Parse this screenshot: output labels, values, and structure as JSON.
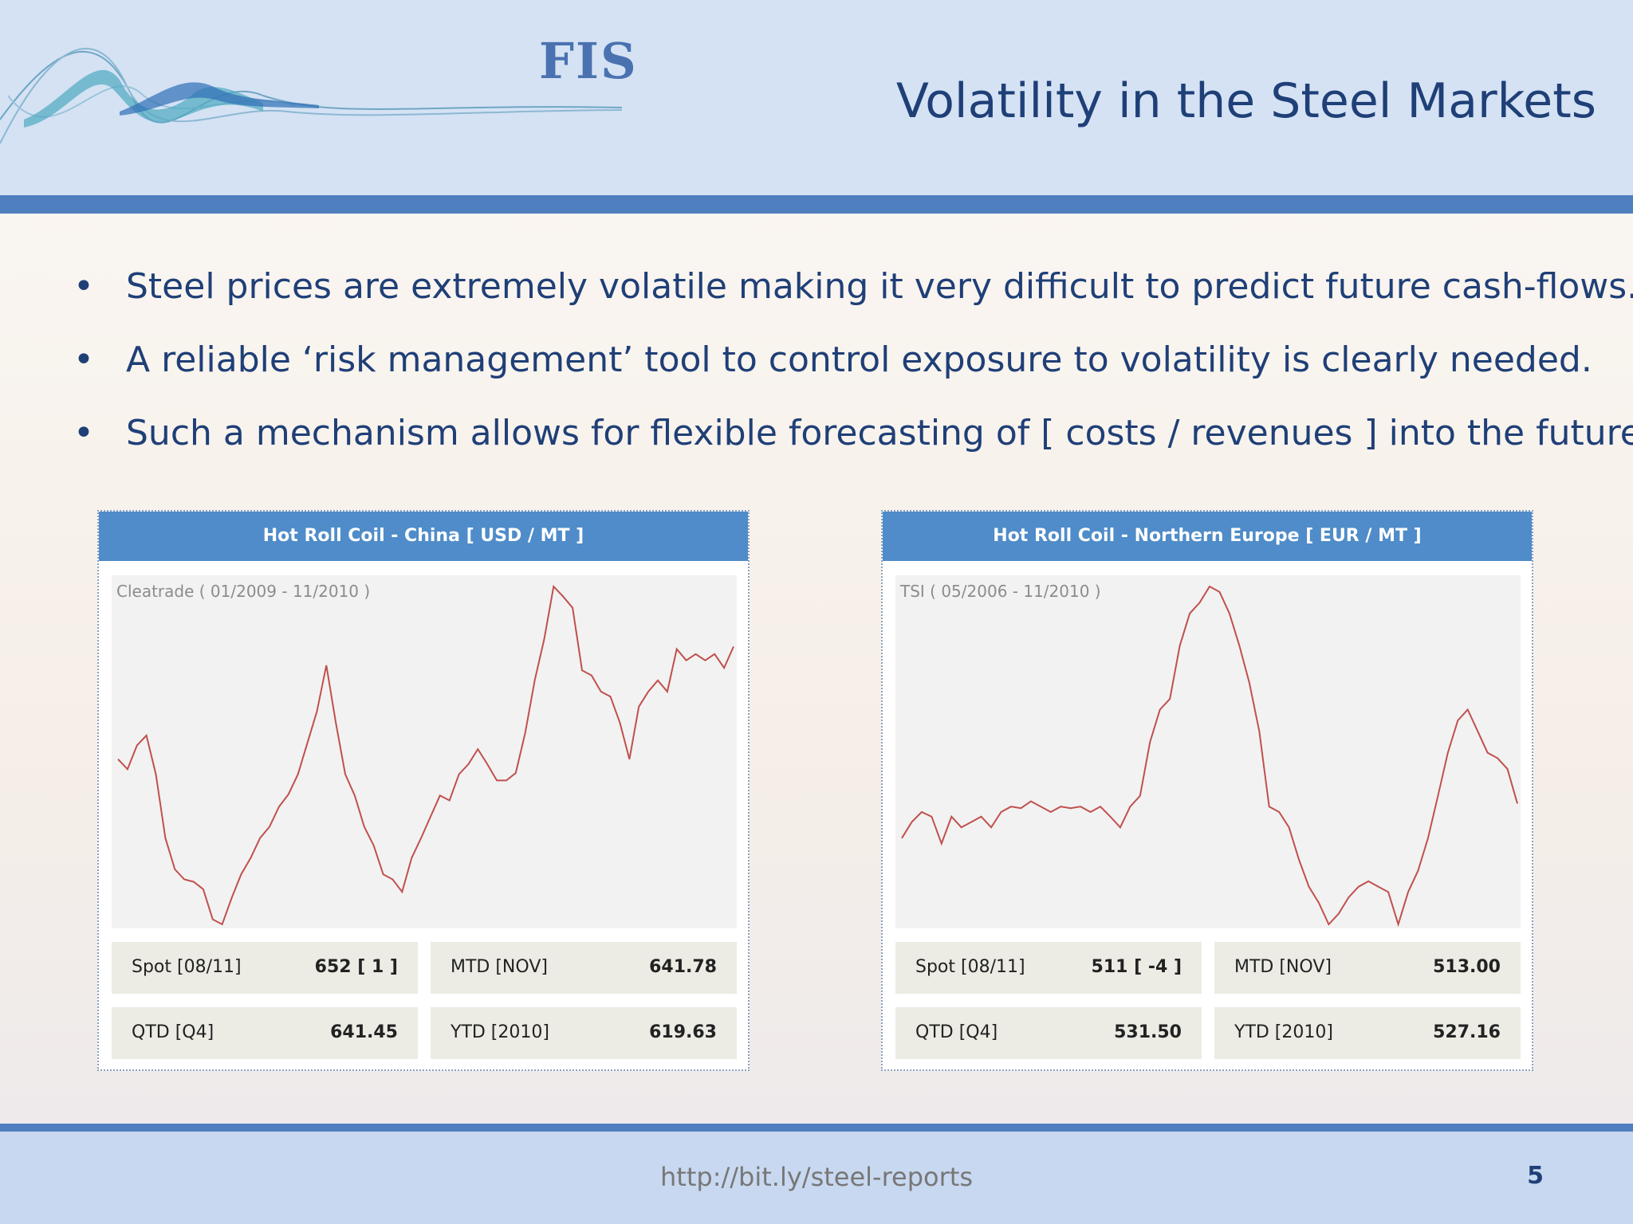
{
  "header": {
    "logo": "FIS",
    "title": "Volatility in the Steel Markets"
  },
  "bullets": [
    "Steel prices are extremely volatile making it very difficult to predict future cash-flows.",
    "A reliable ‘risk management’ tool to control exposure to volatility is clearly needed.",
    "Such a mechanism allows for flexible forecasting of [ costs / revenues ] into the future."
  ],
  "panels": [
    {
      "title": "Hot Roll Coil - China [ USD / MT ]",
      "chart_data": {
        "type": "line",
        "note": "Cleatrade ( 01/2009 - 11/2010 )",
        "color": "#c0504d",
        "values": [
          562,
          554,
          573,
          581,
          550,
          499,
          474,
          466,
          464,
          458,
          434,
          430,
          451,
          470,
          483,
          499,
          508,
          524,
          534,
          550,
          575,
          600,
          637,
          591,
          550,
          533,
          508,
          493,
          470,
          466,
          456,
          483,
          499,
          516,
          533,
          529,
          550,
          558,
          570,
          558,
          545,
          545,
          551,
          583,
          625,
          658,
          700,
          692,
          683,
          633,
          629,
          616,
          612,
          591,
          562,
          604,
          616,
          625,
          616,
          650,
          641,
          646,
          641,
          646,
          635,
          652
        ]
      },
      "stats": [
        {
          "label": "Spot [08/11]",
          "value": "652 [ 1 ]"
        },
        {
          "label": "MTD [NOV]",
          "value": "641.78"
        },
        {
          "label": "QTD [Q4]",
          "value": "641.45"
        },
        {
          "label": "YTD [2010]",
          "value": "619.63"
        }
      ]
    },
    {
      "title": "Hot Roll Coil - Northern Europe [ EUR / MT ]",
      "chart_data": {
        "type": "line",
        "note": "TSI ( 05/2006 - 11/2010 )",
        "color": "#c0504d",
        "values": [
          466,
          487,
          500,
          494,
          459,
          494,
          480,
          487,
          494,
          480,
          500,
          507,
          505,
          514,
          507,
          500,
          507,
          505,
          507,
          500,
          507,
          494,
          480,
          507,
          521,
          591,
          633,
          647,
          716,
          758,
          772,
          793,
          786,
          758,
          716,
          668,
          605,
          507,
          500,
          480,
          438,
          403,
          382,
          354,
          368,
          389,
          403,
          410,
          403,
          396,
          354,
          396,
          424,
          466,
          521,
          577,
          619,
          633,
          605,
          577,
          570,
          556,
          511
        ]
      },
      "stats": [
        {
          "label": "Spot [08/11]",
          "value": "511 [ -4 ]"
        },
        {
          "label": "MTD [NOV]",
          "value": "513.00"
        },
        {
          "label": "QTD [Q4]",
          "value": "531.50"
        },
        {
          "label": "YTD [2010]",
          "value": "527.16"
        }
      ]
    }
  ],
  "footer": {
    "url": "http://bit.ly/steel-reports",
    "page": "5"
  }
}
